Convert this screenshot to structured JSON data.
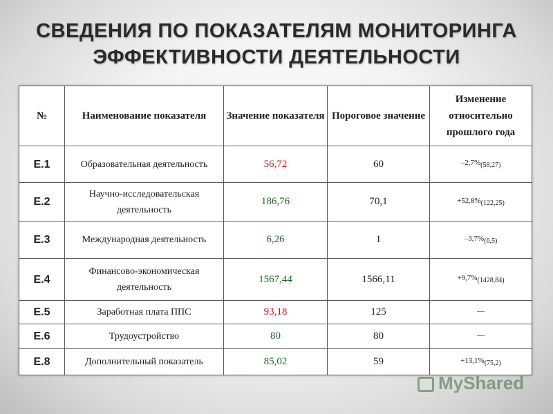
{
  "title": {
    "line1": "СВЕДЕНИЯ ПО ПОКАЗАТЕЛЯМ МОНИТОРИНГА",
    "line2": "ЭФФЕКТИВНОСТИ ДЕЯТЕЛЬНОСТИ"
  },
  "table": {
    "headers": [
      "№",
      "Наименование показателя",
      "Значение показателя",
      "Пороговое значение",
      "Изменение относительно прошлого года"
    ],
    "rows": [
      {
        "code": "Е.1",
        "name": "Образовательная деятельность",
        "value": "56,72",
        "value_color": "#c0171b",
        "threshold": "60",
        "change": "–2,7%",
        "change_sub": "(58,27)"
      },
      {
        "code": "Е.2",
        "name": "Научно-исследовательская деятельность",
        "value": "186,76",
        "value_color": "#1d6a22",
        "threshold": "70,1",
        "change": "+52,8%",
        "change_sub": "(122,25)"
      },
      {
        "code": "Е.3",
        "name": "Международная деятельность",
        "value": "6,26",
        "value_color": "#1d6a22",
        "threshold": "1",
        "change": "–3,7%",
        "change_sub": "(6,5)"
      },
      {
        "code": "Е.4",
        "name": "Финансово-экономическая деятельность",
        "value": "1567,44",
        "value_color": "#1d6a22",
        "threshold": "1566,11",
        "change": "+9,7%",
        "change_sub": "(1428,84)"
      },
      {
        "code": "Е.5",
        "name": "Заработная плата ППС",
        "value": "93,18",
        "value_color": "#c0171b",
        "threshold": "125",
        "change": "—",
        "change_sub": ""
      },
      {
        "code": "Е.6",
        "name": "Трудоустройство",
        "value": "80",
        "value_color": "#1d6a22",
        "threshold": "80",
        "change": "—",
        "change_sub": ""
      },
      {
        "code": "Е.8",
        "name": "Дополнительный показатель",
        "value": "85,02",
        "value_color": "#1d6a22",
        "threshold": "59",
        "change": "+13,1%",
        "change_sub": "(75,2)"
      }
    ]
  },
  "watermark": {
    "text": "MyShared",
    "icon": "presentation-board-icon"
  }
}
